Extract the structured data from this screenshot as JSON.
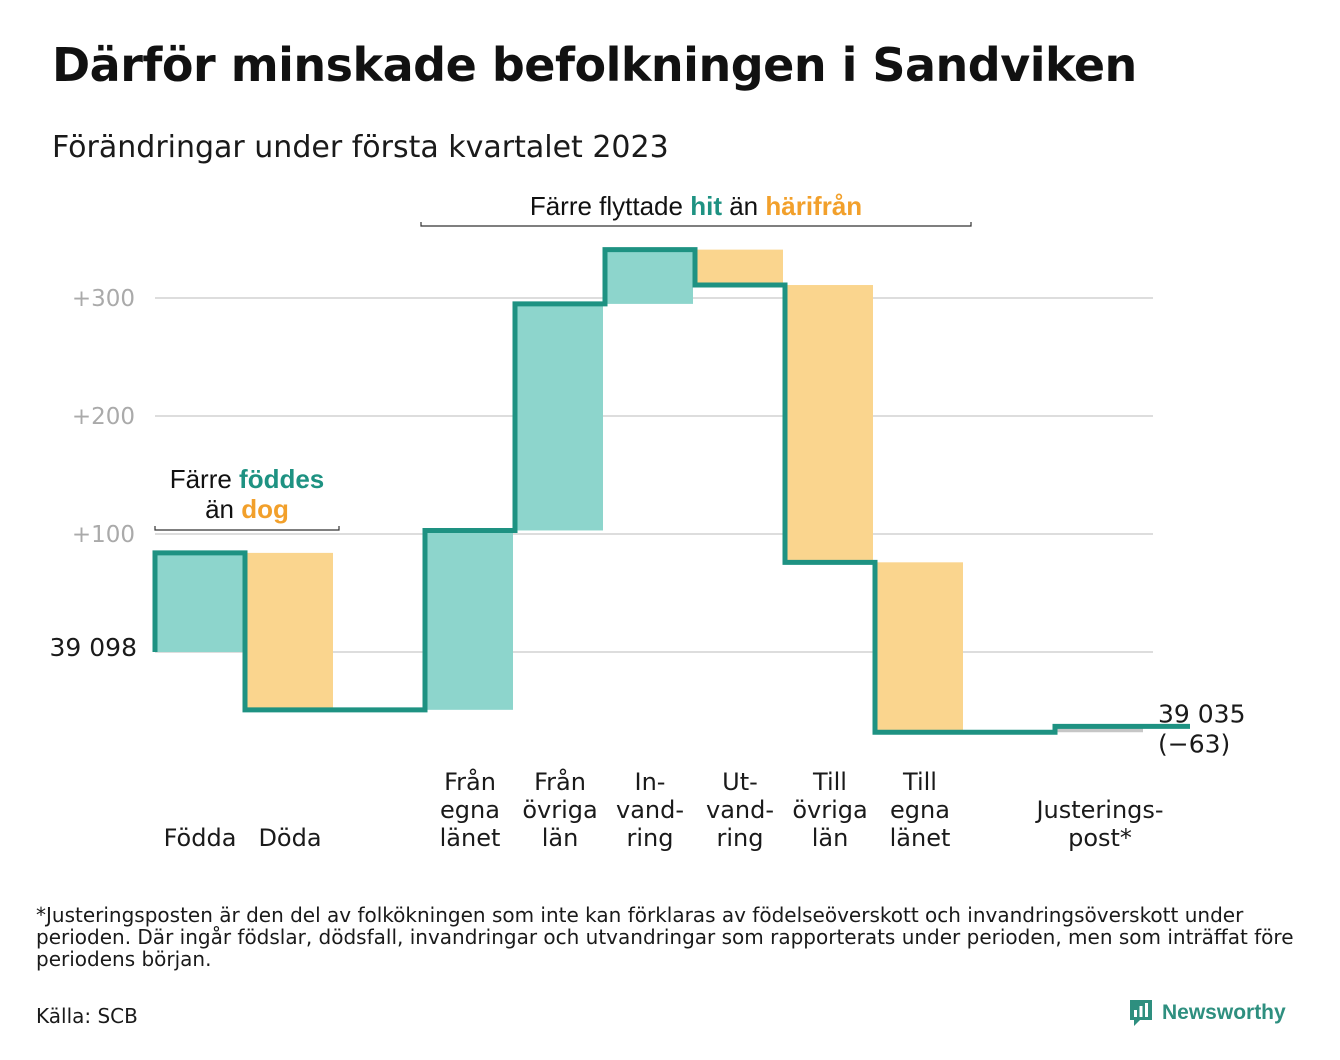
{
  "title": "Därför minskade befolkningen i Sandviken",
  "subtitle": "Förändringar under första kvartalet 2023",
  "chart_data": {
    "type": "waterfall",
    "start_value": 39098,
    "start_label": "39 098",
    "end_value": 39035,
    "end_label": "39 035",
    "end_change_label": "(−63)",
    "y_ticks": [
      {
        "value": 100,
        "label": "+100"
      },
      {
        "value": 200,
        "label": "+200"
      },
      {
        "value": 300,
        "label": "+300"
      }
    ],
    "ylim": [
      -85,
      360
    ],
    "grid": true,
    "steps": [
      {
        "label_lines": [
          "Födda"
        ],
        "change": 84,
        "kind": "in"
      },
      {
        "label_lines": [
          "Döda"
        ],
        "change": -133,
        "kind": "out"
      },
      {
        "label_lines": [
          "Från",
          "egna",
          "länet"
        ],
        "change": 152,
        "kind": "in"
      },
      {
        "label_lines": [
          "Från",
          "övriga",
          "län"
        ],
        "change": 192,
        "kind": "in"
      },
      {
        "label_lines": [
          "In-",
          "vand-",
          "ring"
        ],
        "change": 46,
        "kind": "in"
      },
      {
        "label_lines": [
          "Ut-",
          "vand-",
          "ring"
        ],
        "change": -30,
        "kind": "out"
      },
      {
        "label_lines": [
          "Till",
          "övriga",
          "län"
        ],
        "change": -235,
        "kind": "out"
      },
      {
        "label_lines": [
          "Till",
          "egna",
          "länet"
        ],
        "change": -144,
        "kind": "out"
      },
      {
        "label_lines": [
          "Justerings-",
          "post*"
        ],
        "change": 5,
        "kind": "adj"
      }
    ],
    "annotations": [
      {
        "parts": [
          {
            "text": "Färre ",
            "style": "plain"
          },
          {
            "text": "föddes",
            "style": "in"
          }
        ]
      },
      {
        "parts": [
          {
            "text": "än ",
            "style": "plain"
          },
          {
            "text": "dog",
            "style": "out"
          }
        ]
      },
      {
        "parts": [
          {
            "text": "Färre flyttade ",
            "style": "plain"
          },
          {
            "text": "hit",
            "style": "in"
          },
          {
            "text": " än ",
            "style": "plain"
          },
          {
            "text": "härifrån",
            "style": "out"
          }
        ]
      }
    ],
    "colors": {
      "in_fill": "#8dd5cc",
      "out_fill": "#fad58e",
      "adj_fill": "#c6c6c6",
      "line": "#1e9282",
      "in_text": "#1e9282",
      "out_text": "#f2a02b",
      "grid": "#dddddd",
      "tick_text": "#aaaaaa"
    }
  },
  "footnote": "*Justeringsposten är den del av folkökningen som inte kan förklaras av födelseöverskott och invandringsöverskott under perioden. Där ingår födslar, dödsfall, invandringar och utvandringar som rapporterats under perioden, men som inträffat före periodens början.",
  "source": "Källa: SCB",
  "logo": {
    "text": "Newsworthy",
    "icon": "bar-chart-speech-bubble-icon",
    "color": "#2e8f7f"
  }
}
